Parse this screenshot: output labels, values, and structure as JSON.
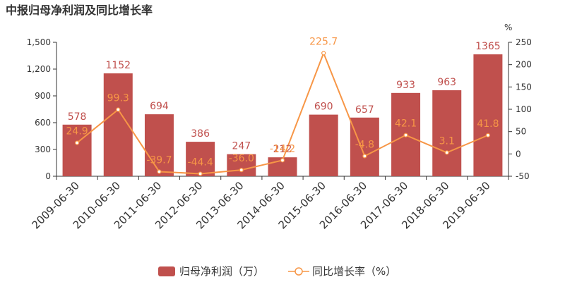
{
  "title": "中报归母净利润及同比增长率",
  "right_axis_unit": "%",
  "legend": {
    "bar_label": "归母净利润（万）",
    "line_label": "同比增长率（%）"
  },
  "colors": {
    "title": "#333333",
    "bar": "#c0504d",
    "bar_label": "#c0504d",
    "line": "#f79646",
    "line_label": "#f79646",
    "axis_text": "#333333",
    "axis_line": "#333333"
  },
  "chart_data": {
    "type": "bar",
    "categories": [
      "2009-06-30",
      "2010-06-30",
      "2011-06-30",
      "2012-06-30",
      "2013-06-30",
      "2014-06-30",
      "2015-06-30",
      "2016-06-30",
      "2017-06-30",
      "2018-06-30",
      "2019-06-30"
    ],
    "series": [
      {
        "name": "归母净利润（万）",
        "type": "bar",
        "axis": "left",
        "values": [
          578,
          1152,
          694,
          386,
          247,
          212,
          690,
          657,
          933,
          963,
          1365
        ],
        "labels": [
          "578",
          "1152",
          "694",
          "386",
          "247",
          "212",
          "690",
          "657",
          "933",
          "963",
          "1365"
        ]
      },
      {
        "name": "同比增长率（%）",
        "type": "line",
        "axis": "right",
        "values": [
          24.9,
          99.3,
          -39.7,
          -44.4,
          -36.0,
          -14.2,
          225.7,
          -4.8,
          42.1,
          3.1,
          41.8
        ],
        "labels": [
          "24.9",
          "99.3",
          "-39.7",
          "-44.4",
          "-36.0",
          "-14.2",
          "225.7",
          "-4.8",
          "42.1",
          "3.1",
          "41.8"
        ]
      }
    ],
    "y_left": {
      "min": 0,
      "max": 1500,
      "ticks": [
        0,
        300,
        600,
        900,
        1200,
        1500
      ],
      "tick_labels": [
        "0",
        "300",
        "600",
        "900",
        "1,200",
        "1,500"
      ]
    },
    "y_right": {
      "min": -50,
      "max": 250,
      "ticks": [
        -50,
        0,
        50,
        100,
        150,
        200,
        250
      ],
      "tick_labels": [
        "-50",
        "0",
        "50",
        "100",
        "150",
        "200",
        "250"
      ]
    },
    "grid": false,
    "legend_position": "bottom"
  }
}
